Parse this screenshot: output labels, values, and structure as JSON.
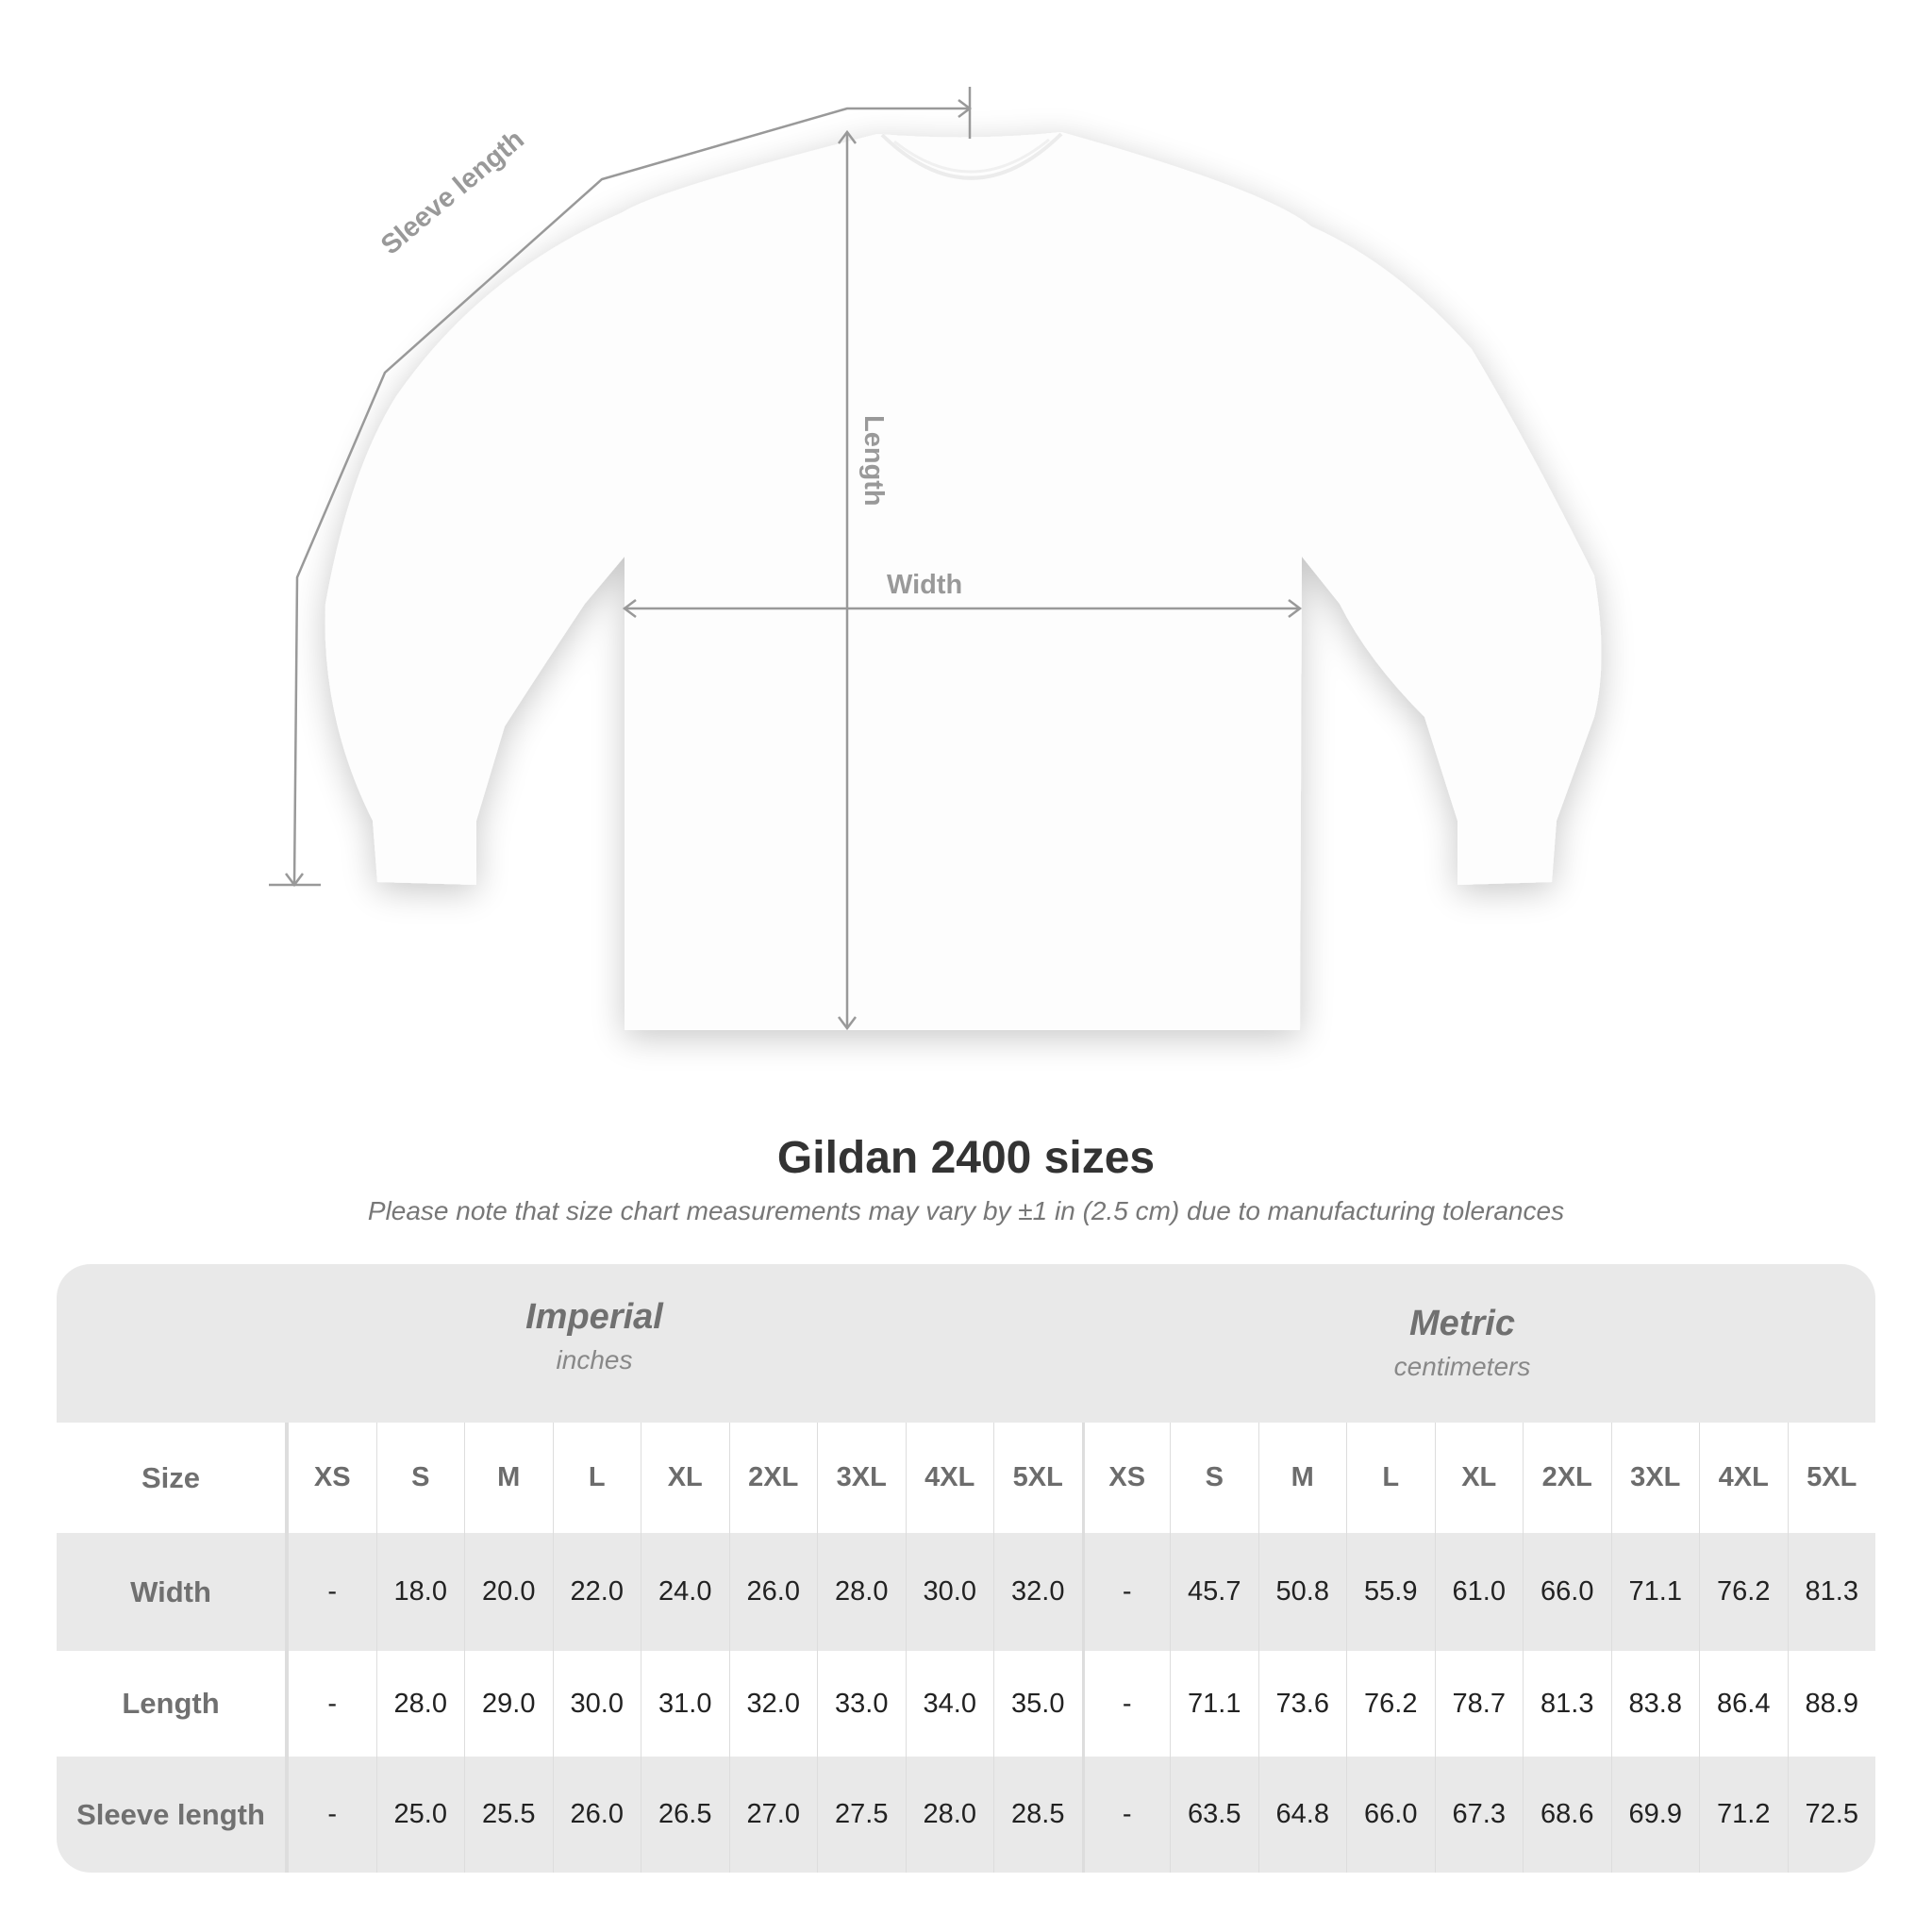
{
  "diagram": {
    "labels": {
      "sleeve": "Sleeve length",
      "length": "Length",
      "width": "Width"
    },
    "line_color": "#999999"
  },
  "title": "Gildan 2400 sizes",
  "subtitle": "Please note that size chart measurements may vary by ±1 in (2.5 cm) due to manufacturing tolerances",
  "table": {
    "imperial": {
      "name": "Imperial",
      "unit": "inches"
    },
    "metric": {
      "name": "Metric",
      "unit": "centimeters"
    },
    "size_label": "Size",
    "sizes": [
      "XS",
      "S",
      "M",
      "L",
      "XL",
      "2XL",
      "3XL",
      "4XL",
      "5XL"
    ],
    "rows": [
      {
        "label": "Width",
        "imperial": [
          "-",
          "18.0",
          "20.0",
          "22.0",
          "24.0",
          "26.0",
          "28.0",
          "30.0",
          "32.0"
        ],
        "metric": [
          "-",
          "45.7",
          "50.8",
          "55.9",
          "61.0",
          "66.0",
          "71.1",
          "76.2",
          "81.3"
        ]
      },
      {
        "label": "Length",
        "imperial": [
          "-",
          "28.0",
          "29.0",
          "30.0",
          "31.0",
          "32.0",
          "33.0",
          "34.0",
          "35.0"
        ],
        "metric": [
          "-",
          "71.1",
          "73.6",
          "76.2",
          "78.7",
          "81.3",
          "83.8",
          "86.4",
          "88.9"
        ]
      },
      {
        "label": "Sleeve length",
        "imperial": [
          "-",
          "25.0",
          "25.5",
          "26.0",
          "26.5",
          "27.0",
          "27.5",
          "28.0",
          "28.5"
        ],
        "metric": [
          "-",
          "63.5",
          "64.8",
          "66.0",
          "67.3",
          "68.6",
          "69.9",
          "71.2",
          "72.5"
        ]
      }
    ],
    "band_color": "#e9e9e9"
  }
}
